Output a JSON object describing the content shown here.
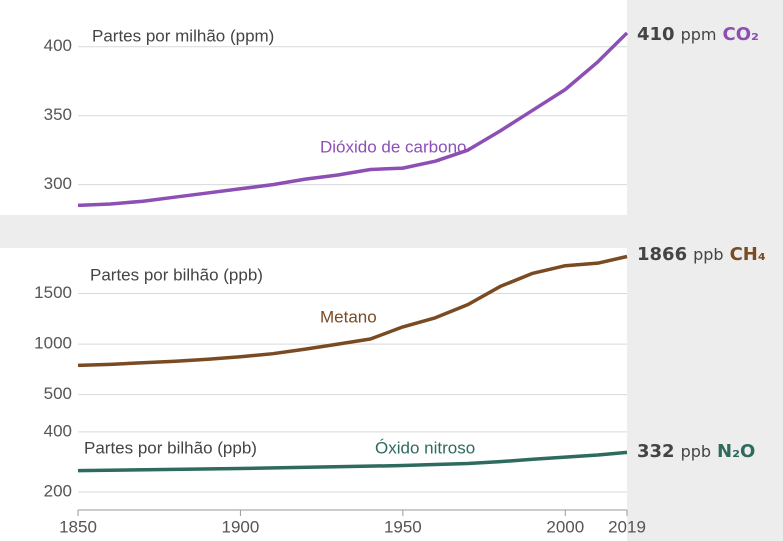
{
  "chart_data": [
    {
      "type": "line",
      "axis_label": "Partes por milhão (ppm)",
      "series": [
        {
          "name": "Dióxido de carbono",
          "color": "#8e4fb5",
          "x": [
            1850,
            1860,
            1870,
            1880,
            1890,
            1900,
            1910,
            1920,
            1930,
            1940,
            1950,
            1960,
            1970,
            1980,
            1990,
            2000,
            2010,
            2019
          ],
          "values": [
            285,
            286,
            288,
            291,
            294,
            297,
            300,
            304,
            307,
            311,
            312,
            317,
            325,
            339,
            354,
            369,
            389,
            410
          ]
        }
      ],
      "unit": "ppm",
      "gas": "CO₂",
      "xlim": [
        1850,
        2019
      ],
      "ylim": [
        278,
        423
      ],
      "yticks": [
        300,
        350,
        400
      ],
      "grid": true
    },
    {
      "type": "line",
      "axis_label": "Partes por bilhão (ppb)",
      "series": [
        {
          "name": "Metano",
          "color": "#7a4a22",
          "x": [
            1850,
            1860,
            1870,
            1880,
            1890,
            1900,
            1910,
            1920,
            1930,
            1940,
            1950,
            1960,
            1970,
            1980,
            1990,
            2000,
            2010,
            2019
          ],
          "values": [
            790,
            800,
            815,
            830,
            850,
            875,
            905,
            950,
            1000,
            1050,
            1170,
            1260,
            1390,
            1570,
            1700,
            1775,
            1800,
            1866
          ]
        }
      ],
      "unit": "ppb",
      "gas": "CH₄",
      "xlim": [
        1850,
        2019
      ],
      "ylim": [
        200,
        1950
      ],
      "yticks": [
        500,
        1000,
        1500
      ],
      "grid": true
    },
    {
      "type": "line",
      "axis_label": "Partes por bilhão (ppb)",
      "series": [
        {
          "name": "Óxido nitroso",
          "color": "#2e6b5e",
          "x": [
            1850,
            1900,
            1950,
            1970,
            1980,
            1990,
            2000,
            2010,
            2019
          ],
          "values": [
            271,
            278,
            288,
            295,
            301,
            309,
            316,
            323,
            332
          ]
        }
      ],
      "unit": "ppb",
      "gas": "N₂O",
      "xlim": [
        1850,
        2019
      ],
      "ylim": [
        140,
        423
      ],
      "yticks": [
        200,
        400
      ],
      "xticks": [
        1850,
        1900,
        1950,
        2000,
        2019
      ],
      "grid": true
    }
  ]
}
